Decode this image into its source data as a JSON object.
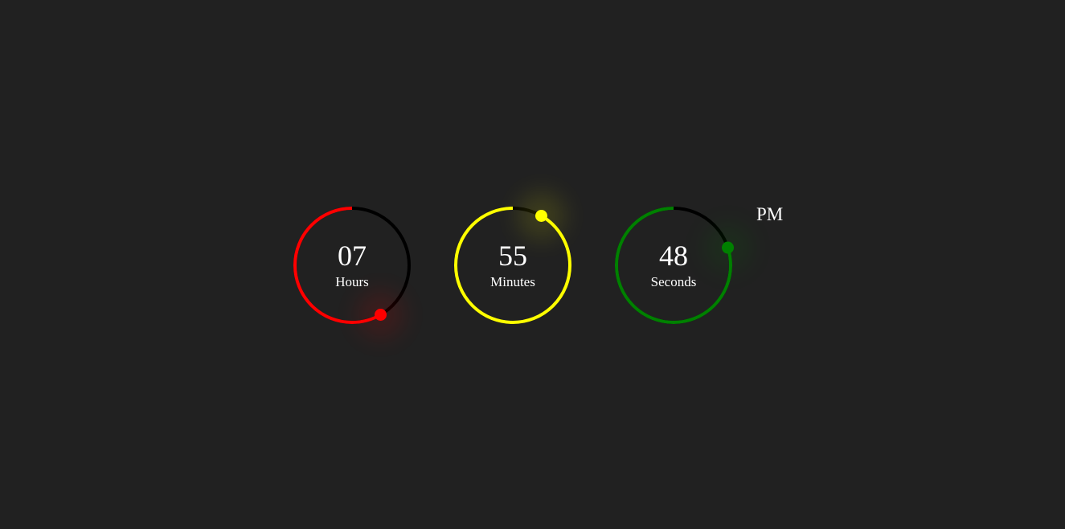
{
  "clock": {
    "hours": {
      "value": "07",
      "label": "Hours",
      "fraction": 0.5833,
      "color": "#ff0000"
    },
    "minutes": {
      "value": "55",
      "label": "Minutes",
      "fraction": 0.9167,
      "color": "#ffff00"
    },
    "seconds": {
      "value": "48",
      "label": "Seconds",
      "fraction": 0.8,
      "color": "#008000"
    },
    "period": "PM",
    "track_color": "#000000",
    "background": "#212121"
  }
}
